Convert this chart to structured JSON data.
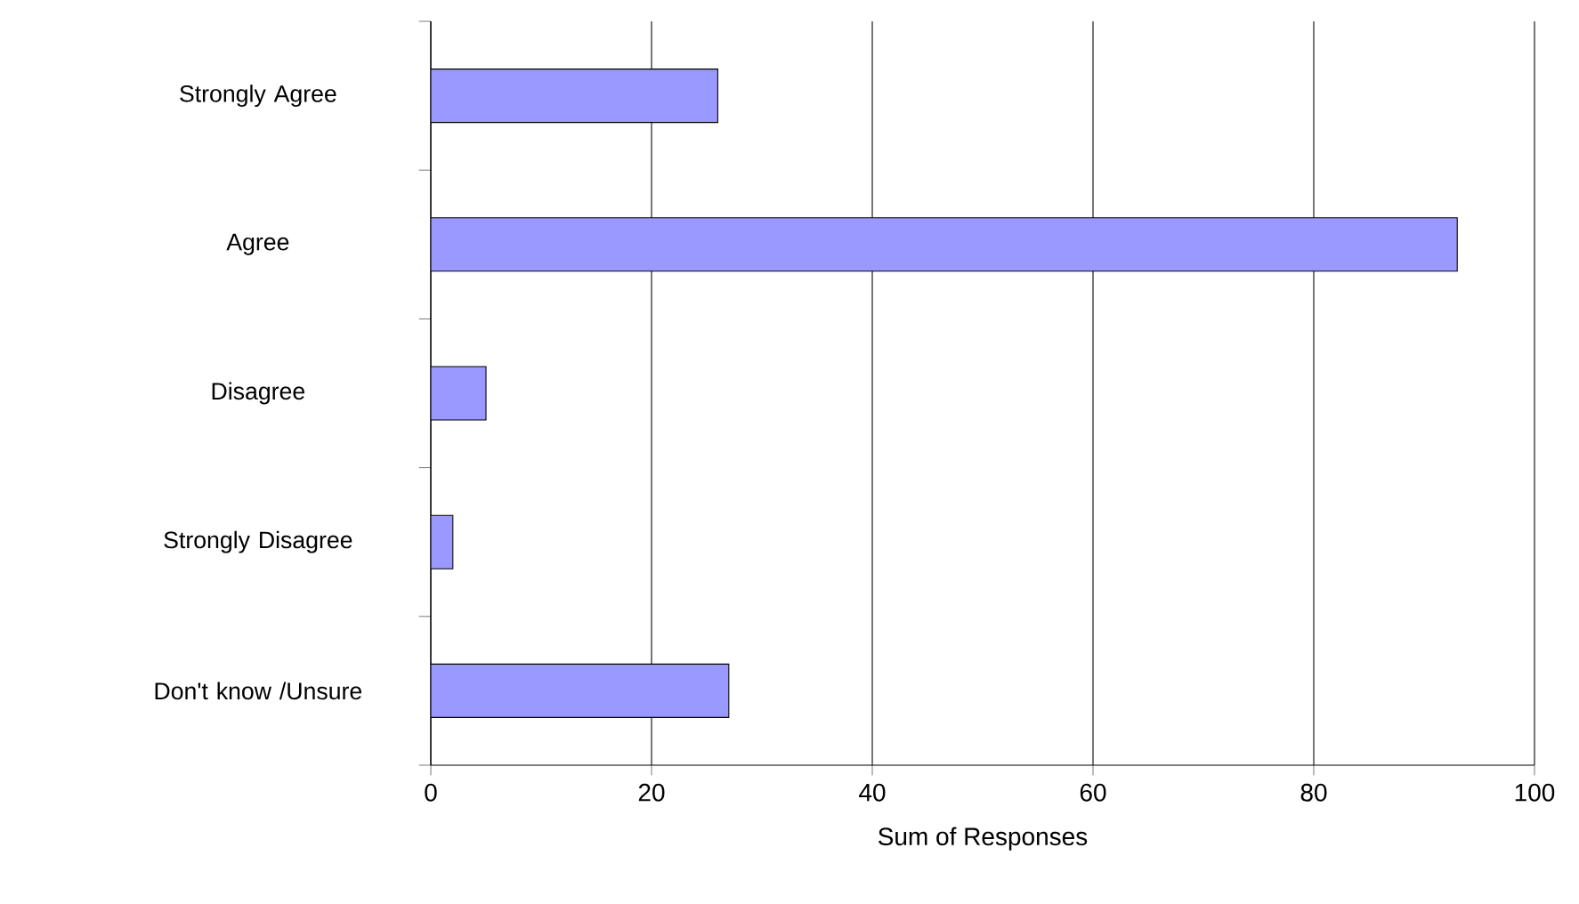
{
  "chart_data": {
    "type": "bar",
    "orientation": "horizontal",
    "xlabel": "Sum of Responses",
    "categories": [
      "Strongly Agree",
      "Agree",
      "Disagree",
      "Strongly Disagree",
      "Don't know /Unsure"
    ],
    "values": [
      26,
      93,
      5,
      2,
      27
    ],
    "color": "#9999ff",
    "xlim": [
      0,
      100
    ],
    "xticks": [
      0,
      20,
      40,
      60,
      80,
      100
    ],
    "grid": "x"
  }
}
